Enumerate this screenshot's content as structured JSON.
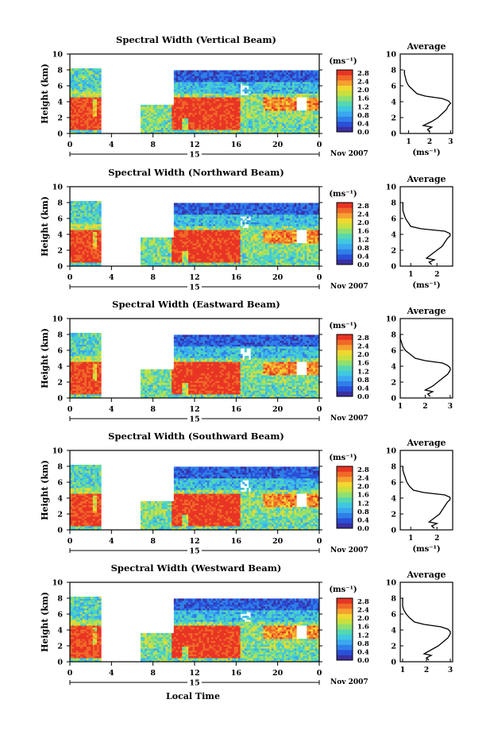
{
  "figure": {
    "height_label": "Height (km)",
    "unit_label": "(ms⁻¹)",
    "avg_title": "Average",
    "avg_xlabel": "(ms⁻¹)",
    "day_label": "15",
    "month_label": "Nov 2007",
    "bottom_xlabel": "Local Time"
  },
  "colors": {
    "scale": [
      "#3b2fa0",
      "#2a4fd8",
      "#2f7fe8",
      "#3aa8f0",
      "#3fc8e0",
      "#55d8b0",
      "#8fe070",
      "#c8e040",
      "#f0d830",
      "#f5a030",
      "#f06828",
      "#e83424"
    ]
  },
  "chart_data": [
    {
      "type": "heatmap",
      "title": "Spectral Width (Vertical Beam)",
      "xlabel": "",
      "ylabel": "Height (km)",
      "x_ticks": [
        "0",
        "4",
        "8",
        "12",
        "16",
        "20",
        "0"
      ],
      "y_ticks": [
        "0",
        "2",
        "4",
        "6",
        "8",
        "10"
      ],
      "xlim": [
        0,
        24
      ],
      "ylim": [
        0,
        10
      ],
      "colorbar": {
        "range": [
          0.0,
          2.8
        ],
        "ticks": [
          "2.8",
          "2.4",
          "2.0",
          "1.6",
          "1.2",
          "0.8",
          "0.4",
          "0.0"
        ]
      },
      "data_gaps_hours": [
        [
          3,
          6.8
        ]
      ],
      "profile": {
        "title": "Average",
        "xlabel": "(ms⁻¹)",
        "x_ticks": [
          "1",
          "2",
          "3"
        ],
        "xlim": [
          0.6,
          3.1
        ],
        "y_ticks": [
          "0",
          "2",
          "4",
          "6",
          "8",
          "10"
        ],
        "ylim": [
          0,
          10
        ],
        "heights": [
          0.2,
          0.5,
          0.8,
          1.0,
          1.5,
          2.0,
          2.5,
          3.0,
          3.5,
          3.8,
          4.1,
          4.4,
          4.7,
          5.0,
          5.5,
          6.0,
          6.5,
          7.0,
          7.5,
          8.0
        ],
        "values": [
          2.0,
          1.9,
          2.1,
          1.7,
          2.1,
          2.4,
          2.6,
          2.8,
          2.9,
          3.0,
          2.9,
          2.6,
          1.8,
          1.4,
          1.2,
          1.0,
          0.9,
          0.85,
          0.8,
          0.8
        ]
      }
    },
    {
      "type": "heatmap",
      "title": "Spectral Width (Northward Beam)",
      "xlabel": "",
      "ylabel": "Height (km)",
      "x_ticks": [
        "0",
        "4",
        "8",
        "12",
        "16",
        "20",
        "0"
      ],
      "y_ticks": [
        "0",
        "2",
        "4",
        "6",
        "8",
        "10"
      ],
      "xlim": [
        0,
        24
      ],
      "ylim": [
        0,
        10
      ],
      "colorbar": {
        "range": [
          0.0,
          2.8
        ],
        "ticks": [
          "2.8",
          "2.4",
          "2.0",
          "1.6",
          "1.2",
          "0.8",
          "0.4",
          "0.0"
        ]
      },
      "data_gaps_hours": [
        [
          3,
          6.8
        ]
      ],
      "profile": {
        "title": "Average",
        "xlabel": "(ms⁻¹)",
        "x_ticks": [
          "1",
          "2"
        ],
        "xlim": [
          0.6,
          2.6
        ],
        "y_ticks": [
          "0",
          "2",
          "4",
          "6",
          "8",
          "10"
        ],
        "ylim": [
          0,
          10
        ],
        "heights": [
          0.2,
          0.5,
          0.8,
          1.0,
          1.5,
          2.0,
          2.5,
          3.0,
          3.5,
          3.8,
          4.1,
          4.4,
          4.7,
          5.0,
          5.5,
          6.0,
          6.5,
          7.0,
          7.5,
          8.0
        ],
        "values": [
          1.8,
          1.7,
          1.9,
          1.6,
          1.8,
          2.0,
          2.2,
          2.3,
          2.4,
          2.5,
          2.5,
          2.3,
          1.4,
          1.0,
          0.9,
          0.8,
          0.75,
          0.7,
          0.7,
          0.7
        ]
      }
    },
    {
      "type": "heatmap",
      "title": "Spectral Width (Eastward Beam)",
      "xlabel": "",
      "ylabel": "Height (km)",
      "x_ticks": [
        "0",
        "4",
        "8",
        "12",
        "16",
        "20",
        "0"
      ],
      "y_ticks": [
        "0",
        "2",
        "4",
        "6",
        "8",
        "10"
      ],
      "xlim": [
        0,
        24
      ],
      "ylim": [
        0,
        10
      ],
      "colorbar": {
        "range": [
          0.0,
          2.8
        ],
        "ticks": [
          "2.8",
          "2.4",
          "2.0",
          "1.6",
          "1.2",
          "0.8",
          "0.4",
          "0.0"
        ]
      },
      "data_gaps_hours": [
        [
          3,
          6.8
        ]
      ],
      "profile": {
        "title": "Average",
        "xlabel": "",
        "x_ticks": [
          "1",
          "2",
          "3"
        ],
        "xlim": [
          1.0,
          3.1
        ],
        "y_ticks": [
          "0",
          "2",
          "4",
          "6",
          "8",
          "10"
        ],
        "ylim": [
          0,
          10
        ],
        "heights": [
          0.2,
          0.5,
          0.8,
          1.0,
          1.5,
          2.0,
          2.5,
          3.0,
          3.5,
          3.8,
          4.1,
          4.4,
          4.7,
          5.0,
          5.5,
          6.0,
          6.5,
          7.0,
          7.5,
          8.0
        ],
        "values": [
          2.2,
          2.1,
          2.3,
          2.0,
          2.3,
          2.5,
          2.7,
          2.9,
          3.0,
          3.0,
          2.9,
          2.7,
          2.0,
          1.6,
          1.4,
          1.2,
          1.1,
          1.05,
          1.0,
          1.0
        ]
      }
    },
    {
      "type": "heatmap",
      "title": "Spectral Width (Southward Beam)",
      "xlabel": "",
      "ylabel": "Height (km)",
      "x_ticks": [
        "0",
        "4",
        "8",
        "12",
        "16",
        "20",
        "0"
      ],
      "y_ticks": [
        "0",
        "2",
        "4",
        "6",
        "8",
        "10"
      ],
      "xlim": [
        0,
        24
      ],
      "ylim": [
        0,
        10
      ],
      "colorbar": {
        "range": [
          0.0,
          2.8
        ],
        "ticks": [
          "2.8",
          "2.4",
          "2.0",
          "1.6",
          "1.2",
          "0.8",
          "0.4",
          "0.0"
        ]
      },
      "data_gaps_hours": [
        [
          3,
          6.8
        ]
      ],
      "profile": {
        "title": "Average",
        "xlabel": "(ms⁻¹)",
        "x_ticks": [
          "1",
          "2"
        ],
        "xlim": [
          0.6,
          2.6
        ],
        "y_ticks": [
          "0",
          "2",
          "4",
          "6",
          "8",
          "10"
        ],
        "ylim": [
          0,
          10
        ],
        "heights": [
          0.2,
          0.5,
          0.8,
          1.0,
          1.5,
          2.0,
          2.5,
          3.0,
          3.5,
          3.8,
          4.1,
          4.4,
          4.7,
          5.0,
          5.5,
          6.0,
          6.5,
          7.0,
          7.5,
          8.0
        ],
        "values": [
          1.9,
          1.8,
          2.0,
          1.7,
          1.9,
          2.1,
          2.2,
          2.3,
          2.4,
          2.5,
          2.5,
          2.3,
          1.5,
          1.1,
          0.95,
          0.85,
          0.8,
          0.75,
          0.7,
          0.7
        ]
      }
    },
    {
      "type": "heatmap",
      "title": "Spectral Width (Westward Beam)",
      "xlabel": "",
      "ylabel": "Height (km)",
      "x_ticks": [
        "0",
        "4",
        "8",
        "12",
        "16",
        "20",
        "0"
      ],
      "y_ticks": [
        "0",
        "2",
        "4",
        "6",
        "8",
        "10"
      ],
      "xlim": [
        0,
        24
      ],
      "ylim": [
        0,
        10
      ],
      "colorbar": {
        "range": [
          0.0,
          2.8
        ],
        "ticks": [
          "2.8",
          "2.4",
          "2.0",
          "1.6",
          "1.2",
          "0.8",
          "0.4",
          "0.0"
        ]
      },
      "data_gaps_hours": [
        [
          3,
          6.8
        ]
      ],
      "profile": {
        "title": "Average",
        "xlabel": "",
        "x_ticks": [
          "1",
          "2",
          "3"
        ],
        "xlim": [
          0.9,
          3.1
        ],
        "y_ticks": [
          "0",
          "2",
          "4",
          "6",
          "8",
          "10"
        ],
        "ylim": [
          0,
          10
        ],
        "heights": [
          0.2,
          0.5,
          0.8,
          1.0,
          1.5,
          2.0,
          2.5,
          3.0,
          3.5,
          3.8,
          4.1,
          4.4,
          4.7,
          5.0,
          5.5,
          6.0,
          6.5,
          7.0,
          7.5,
          8.0
        ],
        "values": [
          2.1,
          2.0,
          2.2,
          1.9,
          2.2,
          2.5,
          2.7,
          2.9,
          3.0,
          3.0,
          2.9,
          2.6,
          1.9,
          1.5,
          1.3,
          1.15,
          1.05,
          1.0,
          1.0,
          1.0
        ]
      }
    }
  ]
}
